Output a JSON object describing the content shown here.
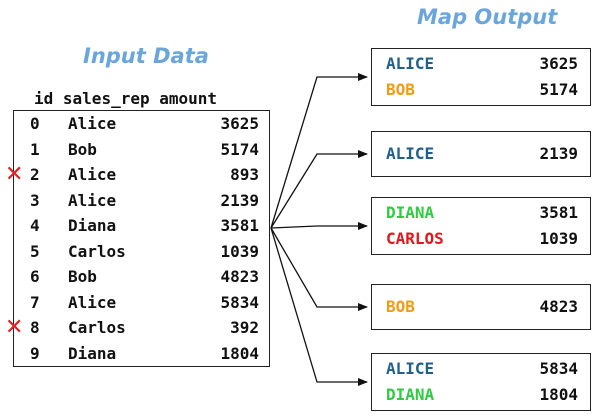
{
  "input_title": "Input Data",
  "output_title": "Map Output",
  "table": {
    "headers": {
      "id": "id",
      "rep": "sales_rep",
      "amount": "amount"
    },
    "rows": [
      {
        "id": "0",
        "rep": "Alice",
        "amount": "3625",
        "removed": false
      },
      {
        "id": "1",
        "rep": "Bob",
        "amount": "5174",
        "removed": false
      },
      {
        "id": "2",
        "rep": "Alice",
        "amount": "893",
        "removed": true
      },
      {
        "id": "3",
        "rep": "Alice",
        "amount": "2139",
        "removed": false
      },
      {
        "id": "4",
        "rep": "Diana",
        "amount": "3581",
        "removed": false
      },
      {
        "id": "5",
        "rep": "Carlos",
        "amount": "1039",
        "removed": false
      },
      {
        "id": "6",
        "rep": "Bob",
        "amount": "4823",
        "removed": false
      },
      {
        "id": "7",
        "rep": "Alice",
        "amount": "5834",
        "removed": false
      },
      {
        "id": "8",
        "rep": "Carlos",
        "amount": "392",
        "removed": true
      },
      {
        "id": "9",
        "rep": "Diana",
        "amount": "1804",
        "removed": false
      }
    ],
    "removed_marker": "✕"
  },
  "outputs": [
    {
      "lines": [
        {
          "name": "ALICE",
          "value": "3625"
        },
        {
          "name": "BOB",
          "value": "5174"
        }
      ]
    },
    {
      "lines": [
        {
          "name": "ALICE",
          "value": "2139"
        }
      ]
    },
    {
      "lines": [
        {
          "name": "DIANA",
          "value": "3581"
        },
        {
          "name": "CARLOS",
          "value": "1039"
        }
      ]
    },
    {
      "lines": [
        {
          "name": "BOB",
          "value": "4823"
        }
      ]
    },
    {
      "lines": [
        {
          "name": "ALICE",
          "value": "5834"
        },
        {
          "name": "DIANA",
          "value": "1804"
        }
      ]
    }
  ],
  "colors": {
    "ALICE": "#1f5f8b",
    "BOB": "#f39c12",
    "DIANA": "#2ecc40",
    "CARLOS": "#e8141c",
    "title": "#6aa6dc"
  }
}
